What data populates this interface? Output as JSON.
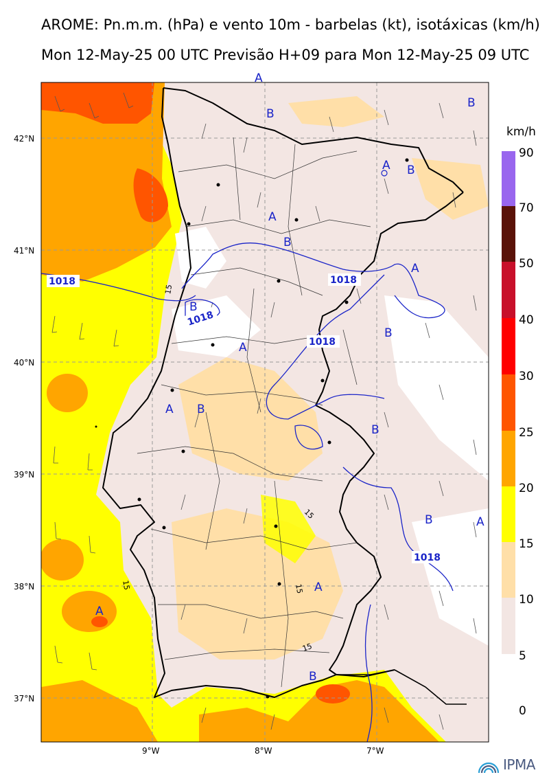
{
  "header": {
    "title_line1": "AROME: Pn.m.m. (hPa) e vento 10m - barbelas (kt), isotáxicas (km/h)",
    "title_line2": "Mon 12-May-25 00 UTC Previsão H+09 para Mon 12-May-25 09 UTC"
  },
  "map": {
    "lat_labels": [
      "42°N",
      "41°N",
      "40°N",
      "39°N",
      "38°N",
      "37°N"
    ],
    "lon_labels": [
      "9°W",
      "8°W",
      "7°W"
    ],
    "isobar_label": "1018",
    "isotach_label": "15",
    "anticyclone_marker": "A",
    "low_marker": "B"
  },
  "colorbar": {
    "unit": "km/h",
    "ticks": [
      "90",
      "70",
      "50",
      "40",
      "30",
      "25",
      "20",
      "15",
      "10",
      "5",
      "0"
    ],
    "colors": [
      "#9966ee",
      "#5a1208",
      "#c8102a",
      "#ff0000",
      "#ff5500",
      "#ffa500",
      "#ffff00",
      "#ffdfa8",
      "#f3e6e3",
      "#ffffff"
    ]
  },
  "footer": {
    "logo_text": "IPMA"
  },
  "palette": {
    "calm": "#ffffff",
    "c5": "#f3e6e3",
    "c10": "#ffdfa8",
    "c15": "#ffff00",
    "c20": "#ffa500",
    "c25": "#ff5500",
    "c30": "#ff0000",
    "isobar": "#1a24c8"
  }
}
